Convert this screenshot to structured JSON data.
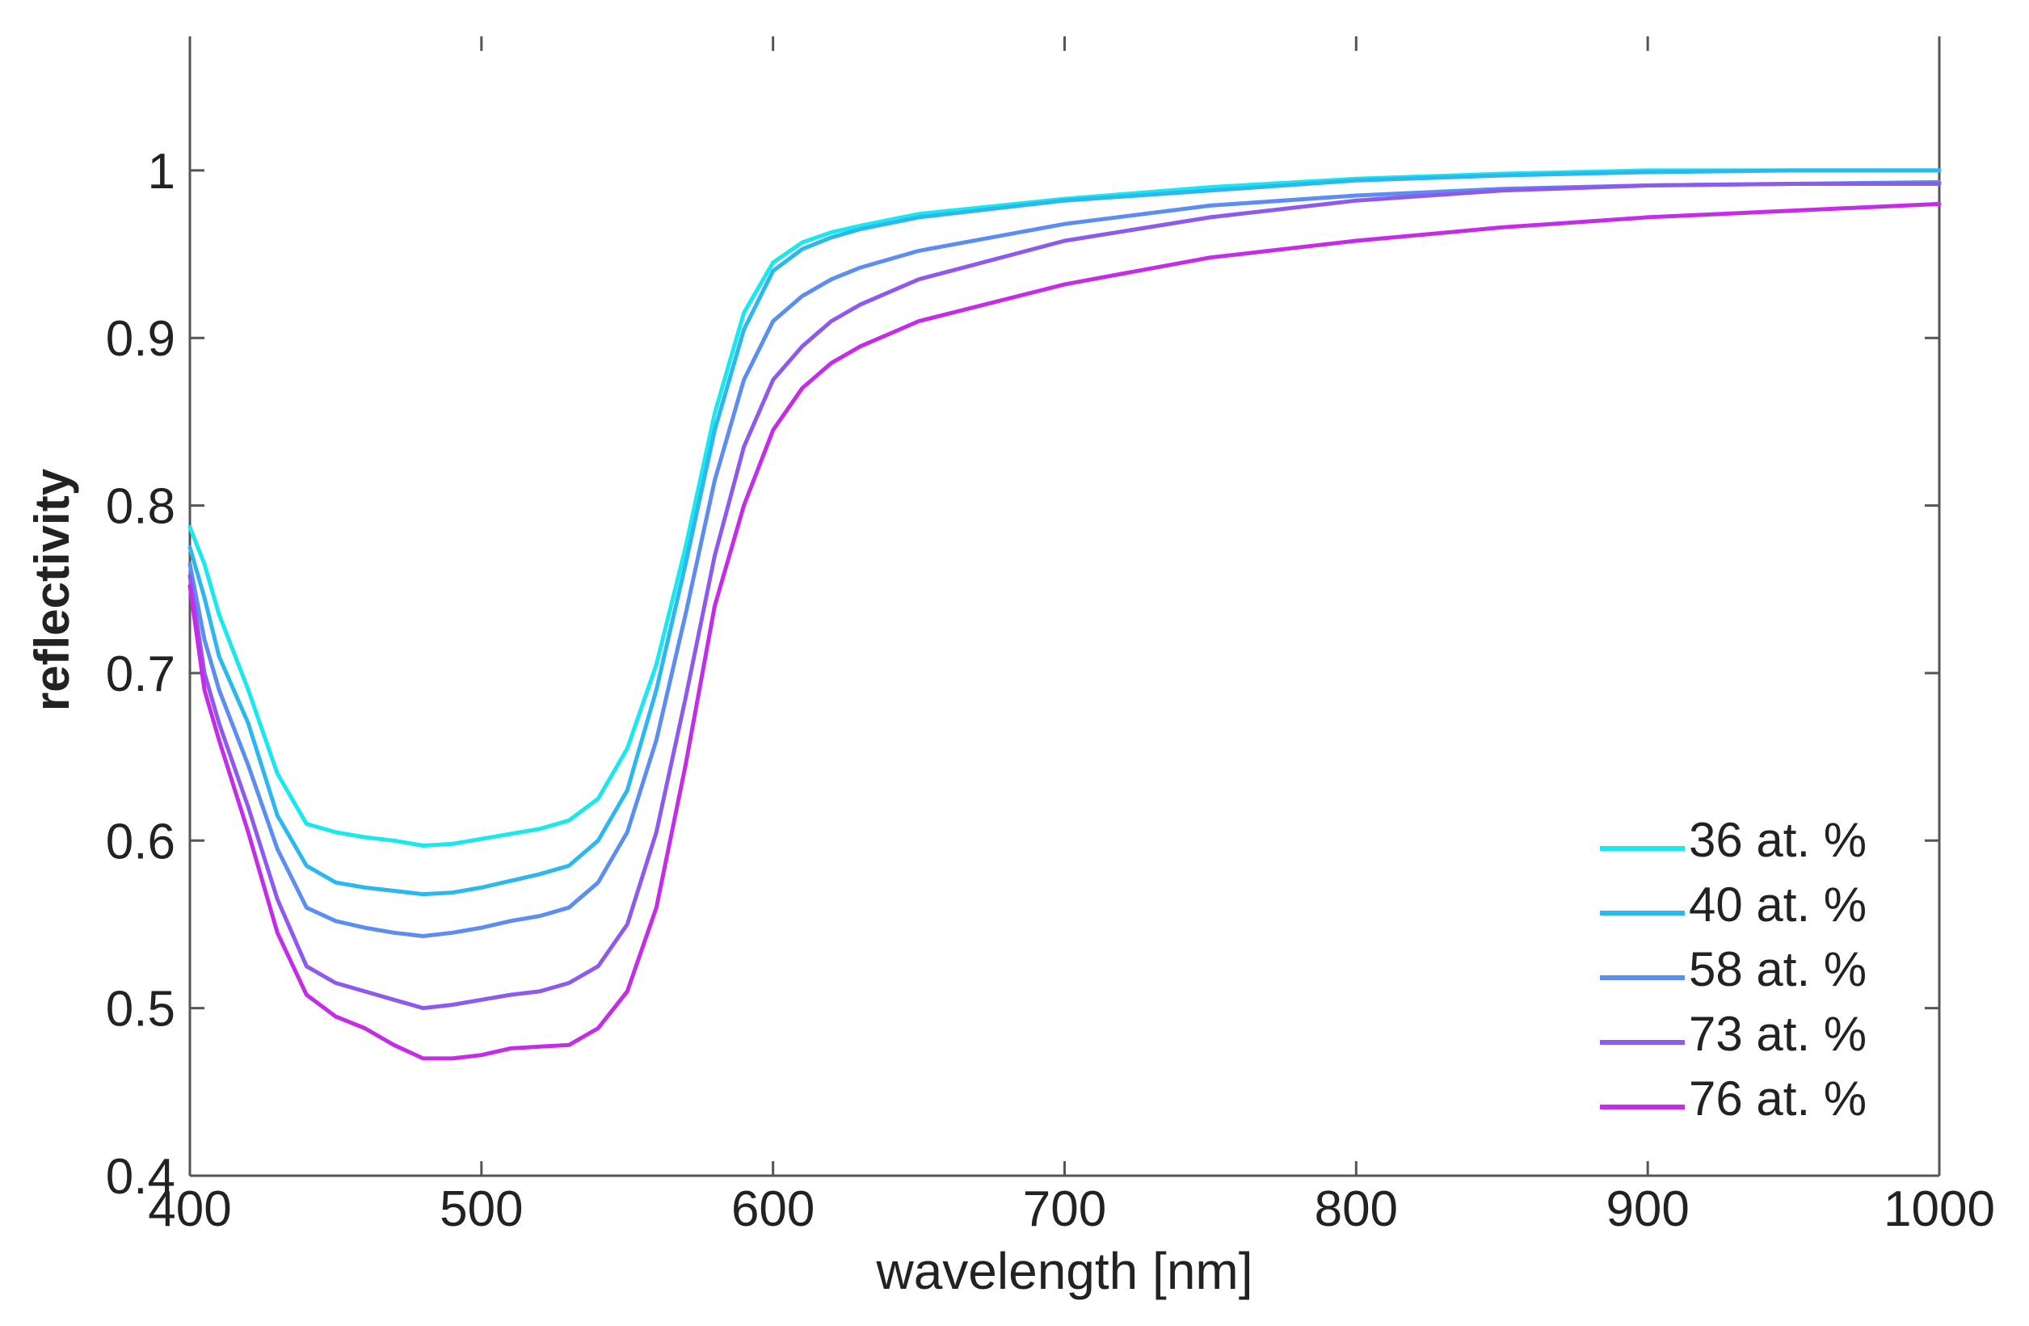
{
  "chart_data": {
    "type": "line",
    "title": "",
    "xlabel": "wavelength [nm]",
    "ylabel": "reflectivity",
    "xlim": [
      400,
      1000
    ],
    "ylim": [
      0.4,
      1.08
    ],
    "x_ticks": [
      400,
      500,
      600,
      700,
      800,
      900,
      1000
    ],
    "x_tick_labels": [
      "400",
      "500",
      "600",
      "700",
      "800",
      "900",
      "1000"
    ],
    "y_ticks": [
      0.4,
      0.5,
      0.6,
      0.7,
      0.8,
      0.9,
      1.0
    ],
    "y_tick_labels": [
      "0.4",
      "0.5",
      "0.6",
      "0.7",
      "0.8",
      "0.9",
      "1"
    ],
    "grid": false,
    "legend_position": "bottom-right",
    "x": [
      400,
      405,
      410,
      420,
      430,
      440,
      450,
      460,
      470,
      480,
      490,
      500,
      510,
      520,
      530,
      540,
      550,
      560,
      570,
      580,
      590,
      600,
      610,
      620,
      630,
      650,
      700,
      750,
      800,
      850,
      900,
      950,
      1000
    ],
    "series": [
      {
        "name": "36 at. %",
        "color": "#19e8ee",
        "values": [
          0.787,
          0.765,
          0.735,
          0.69,
          0.64,
          0.61,
          0.605,
          0.602,
          0.6,
          0.597,
          0.598,
          0.601,
          0.604,
          0.607,
          0.612,
          0.625,
          0.655,
          0.705,
          0.775,
          0.855,
          0.915,
          0.945,
          0.957,
          0.963,
          0.967,
          0.974,
          0.983,
          0.99,
          0.995,
          0.998,
          1.0,
          1.0,
          1.0
        ]
      },
      {
        "name": "40 at. %",
        "color": "#2bb8ee",
        "values": [
          0.775,
          0.745,
          0.71,
          0.67,
          0.615,
          0.585,
          0.575,
          0.572,
          0.57,
          0.568,
          0.569,
          0.572,
          0.576,
          0.58,
          0.585,
          0.6,
          0.63,
          0.69,
          0.765,
          0.845,
          0.905,
          0.94,
          0.953,
          0.96,
          0.965,
          0.972,
          0.982,
          0.988,
          0.994,
          0.997,
          0.999,
          1.0,
          1.0
        ]
      },
      {
        "name": "58 at. %",
        "color": "#5b8ef0",
        "values": [
          0.765,
          0.72,
          0.69,
          0.645,
          0.595,
          0.56,
          0.552,
          0.548,
          0.545,
          0.543,
          0.545,
          0.548,
          0.552,
          0.555,
          0.56,
          0.575,
          0.605,
          0.66,
          0.735,
          0.815,
          0.875,
          0.91,
          0.925,
          0.935,
          0.942,
          0.952,
          0.968,
          0.979,
          0.985,
          0.989,
          0.991,
          0.992,
          0.993
        ]
      },
      {
        "name": "73 at. %",
        "color": "#8e5aee",
        "values": [
          0.758,
          0.7,
          0.67,
          0.62,
          0.565,
          0.525,
          0.515,
          0.51,
          0.505,
          0.5,
          0.502,
          0.505,
          0.508,
          0.51,
          0.515,
          0.525,
          0.55,
          0.605,
          0.685,
          0.77,
          0.835,
          0.875,
          0.895,
          0.91,
          0.92,
          0.935,
          0.958,
          0.972,
          0.982,
          0.988,
          0.991,
          0.992,
          0.992
        ]
      },
      {
        "name": "76 at. %",
        "color": "#c52ce8",
        "values": [
          0.752,
          0.69,
          0.66,
          0.605,
          0.545,
          0.508,
          0.495,
          0.488,
          0.478,
          0.47,
          0.47,
          0.472,
          0.476,
          0.477,
          0.478,
          0.488,
          0.51,
          0.56,
          0.645,
          0.74,
          0.8,
          0.845,
          0.87,
          0.885,
          0.895,
          0.91,
          0.932,
          0.948,
          0.958,
          0.966,
          0.972,
          0.976,
          0.98
        ]
      }
    ]
  }
}
